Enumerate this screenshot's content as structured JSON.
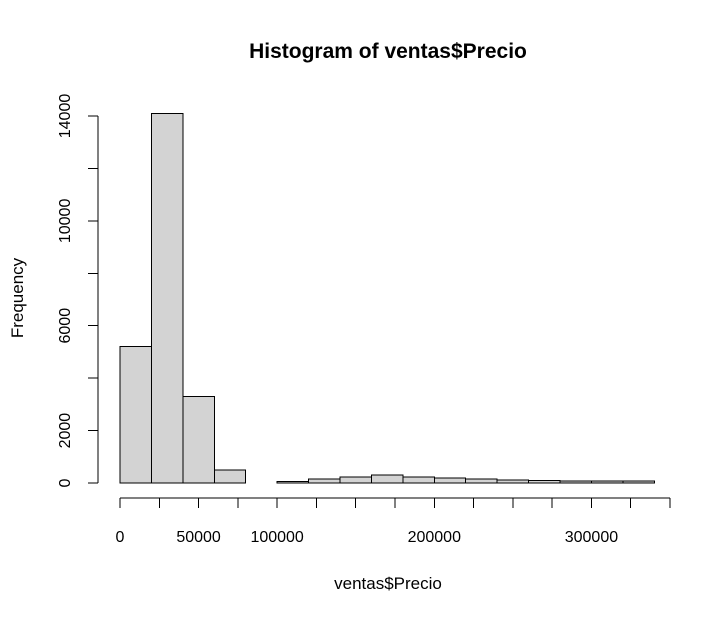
{
  "chart_data": {
    "type": "bar",
    "title": "Histogram of ventas$Precio",
    "xlabel": "ventas$Precio",
    "ylabel": "Frequency",
    "xlim": [
      0,
      340000
    ],
    "ylim": [
      0,
      14000
    ],
    "bin_width": 20000,
    "bins": [
      {
        "x0": 0,
        "x1": 20000,
        "value": 5200
      },
      {
        "x0": 20000,
        "x1": 40000,
        "value": 14100
      },
      {
        "x0": 40000,
        "x1": 60000,
        "value": 3300
      },
      {
        "x0": 60000,
        "x1": 80000,
        "value": 500
      },
      {
        "x0": 80000,
        "x1": 100000,
        "value": 0
      },
      {
        "x0": 100000,
        "x1": 120000,
        "value": 50
      },
      {
        "x0": 120000,
        "x1": 140000,
        "value": 150
      },
      {
        "x0": 140000,
        "x1": 160000,
        "value": 230
      },
      {
        "x0": 160000,
        "x1": 180000,
        "value": 310
      },
      {
        "x0": 180000,
        "x1": 200000,
        "value": 230
      },
      {
        "x0": 200000,
        "x1": 220000,
        "value": 190
      },
      {
        "x0": 220000,
        "x1": 240000,
        "value": 150
      },
      {
        "x0": 240000,
        "x1": 260000,
        "value": 110
      },
      {
        "x0": 260000,
        "x1": 280000,
        "value": 100
      },
      {
        "x0": 280000,
        "x1": 300000,
        "value": 70
      },
      {
        "x0": 300000,
        "x1": 320000,
        "value": 70
      },
      {
        "x0": 320000,
        "x1": 340000,
        "value": 70
      }
    ],
    "x_ticks": [
      0,
      25000,
      50000,
      75000,
      100000,
      125000,
      150000,
      175000,
      200000,
      225000,
      250000,
      275000,
      300000,
      325000,
      350000
    ],
    "x_tick_labels": [
      {
        "value": 0,
        "label": "0"
      },
      {
        "value": 50000,
        "label": "50000"
      },
      {
        "value": 100000,
        "label": "100000"
      },
      {
        "value": 200000,
        "label": "200000"
      },
      {
        "value": 300000,
        "label": "300000"
      }
    ],
    "y_ticks": [
      0,
      2000,
      4000,
      6000,
      8000,
      10000,
      12000,
      14000
    ],
    "y_tick_labels": [
      {
        "value": 0,
        "label": "0"
      },
      {
        "value": 2000,
        "label": "2000"
      },
      {
        "value": 6000,
        "label": "6000"
      },
      {
        "value": 10000,
        "label": "10000"
      },
      {
        "value": 14000,
        "label": "14000"
      }
    ],
    "bar_fill": "#d3d3d3",
    "bar_stroke": "#000000",
    "grid": false
  }
}
